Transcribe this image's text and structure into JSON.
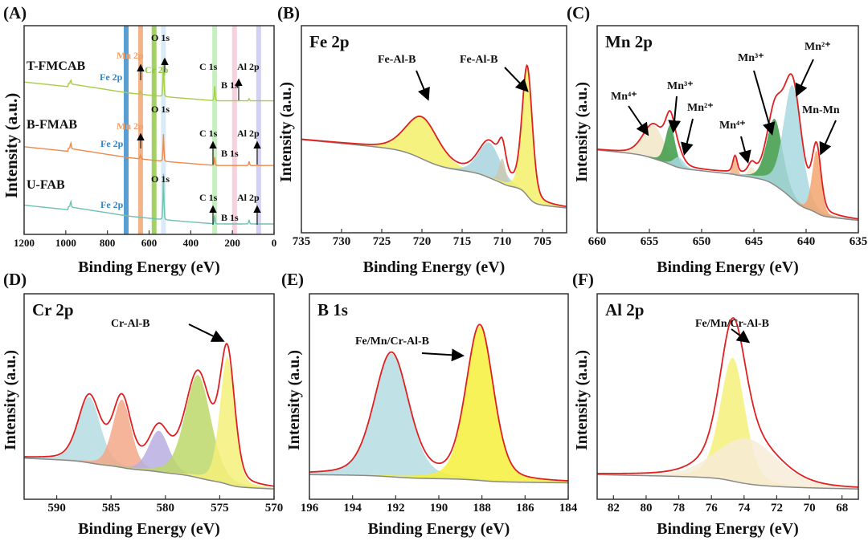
{
  "chart_data": [
    {
      "id": "A",
      "label": "(A)",
      "type": "line",
      "title": "",
      "xlabel": "Binding Energy (eV)",
      "ylabel": "Intensity (a.u.)",
      "xlim": [
        1200,
        0
      ],
      "ylim": [
        0,
        1
      ],
      "ticks": [
        1200,
        1000,
        800,
        600,
        400,
        200,
        0
      ],
      "bands": [
        {
          "name": "Fe 2p",
          "center": 710,
          "color": "#2f86c8"
        },
        {
          "name": "Mn 2p",
          "center": 641,
          "color": "#f0a06a"
        },
        {
          "name": "Cr 2p",
          "center": 576,
          "color": "#8cc63f"
        },
        {
          "name": "O 1s",
          "center": 531,
          "color": "#cfe6f5"
        },
        {
          "name": "C 1s",
          "center": 285,
          "color": "#b9ecb0"
        },
        {
          "name": "B 1s",
          "center": 190,
          "color": "#f6c6d6"
        },
        {
          "name": "Al 2p",
          "center": 74,
          "color": "#c7c4f0"
        }
      ],
      "series": [
        {
          "name": "T-FMCAB",
          "offset": 0.64,
          "color": "#a9cc44",
          "spikes": [
            [
              531,
              0.18
            ],
            [
              285,
              0.07
            ],
            [
              641,
              0.015
            ],
            [
              976,
              0.02
            ],
            [
              120,
              0.01
            ]
          ],
          "labels": {
            "fe": "Fe 2p",
            "mn": "Mn 2p",
            "cr": "Cr 2p",
            "o": "O 1s",
            "c": "C 1s",
            "al": "Al 2p",
            "b": "B 1s"
          }
        },
        {
          "name": "B-FMAB",
          "offset": 0.33,
          "color": "#ec8a4c",
          "spikes": [
            [
              531,
              0.13
            ],
            [
              285,
              0.04
            ],
            [
              641,
              0.02
            ],
            [
              976,
              0.03
            ],
            [
              120,
              0.02
            ]
          ],
          "labels": {
            "fe": "Fe 2p",
            "mn": "Mn 2p",
            "o": "O 1s",
            "c": "C 1s",
            "al": "Al 2p",
            "b": "B 1s"
          }
        },
        {
          "name": "U-FAB",
          "offset": 0.05,
          "color": "#6fc0b0",
          "spikes": [
            [
              531,
              0.22
            ],
            [
              285,
              0.04
            ],
            [
              976,
              0.03
            ],
            [
              120,
              0.02
            ]
          ],
          "labels": {
            "fe": "Fe 2p",
            "o": "O 1s",
            "c": "C 1s",
            "al": "Al 2p",
            "b": "B 1s"
          }
        }
      ]
    },
    {
      "id": "B",
      "label": "(B)",
      "type": "area",
      "title": "Fe 2p",
      "xlabel": "Binding Energy (eV)",
      "ylabel": "Intensity (a.u.)",
      "xlim": [
        735,
        702
      ],
      "ylim": [
        0,
        1
      ],
      "ticks": [
        735,
        730,
        725,
        720,
        715,
        710,
        705
      ],
      "baseline": [
        0.45,
        0.12
      ],
      "components": [
        {
          "center": 720.0,
          "height": 0.2,
          "width": 2.4,
          "color": "#f5f06a"
        },
        {
          "center": 711.6,
          "height": 0.17,
          "width": 1.6,
          "color": "#a8d4de"
        },
        {
          "center": 710.0,
          "height": 0.12,
          "width": 0.5,
          "color": "#c9c9b0"
        },
        {
          "center": 706.9,
          "height": 0.62,
          "width": 0.75,
          "color": "#f5f06a"
        }
      ],
      "annotations": [
        "Fe-Al-B",
        "Fe-Al-B"
      ]
    },
    {
      "id": "C",
      "label": "(C)",
      "type": "area",
      "title": "Mn 2p",
      "xlabel": "Binding Energy (eV)",
      "ylabel": "Intensity (a.u.)",
      "xlim": [
        660,
        635
      ],
      "ylim": [
        0,
        1
      ],
      "ticks": [
        660,
        655,
        650,
        645,
        640,
        635
      ],
      "baseline": [
        0.4,
        0.06
      ],
      "components": [
        {
          "center": 654.6,
          "height": 0.16,
          "width": 1.2,
          "color": "#f1e6c8"
        },
        {
          "center": 653.0,
          "height": 0.19,
          "width": 0.55,
          "color": "#3c9a46"
        },
        {
          "center": 652.2,
          "height": 0.05,
          "width": 0.6,
          "color": "#a8d8e0"
        },
        {
          "center": 646.8,
          "height": 0.08,
          "width": 0.25,
          "color": "#f5b080"
        },
        {
          "center": 645.2,
          "height": 0.05,
          "width": 0.4,
          "color": "#f1e6c8"
        },
        {
          "center": 643.0,
          "height": 0.32,
          "width": 0.9,
          "color": "#3c9a46"
        },
        {
          "center": 641.3,
          "height": 0.55,
          "width": 1.0,
          "color": "#a8d8e0"
        },
        {
          "center": 639.0,
          "height": 0.3,
          "width": 0.5,
          "color": "#f3a56e"
        }
      ],
      "annotations": [
        "Mn⁴⁺",
        "Mn³⁺",
        "Mn²⁺",
        "Mn⁴⁺",
        "Mn³⁺",
        "Mn²⁺",
        "Mn-Mn"
      ]
    },
    {
      "id": "D",
      "label": "(D)",
      "type": "area",
      "title": "Cr 2p",
      "xlabel": "Binding Energy (eV)",
      "ylabel": "Intensity (a.u.)",
      "xlim": [
        593,
        570
      ],
      "ylim": [
        0,
        1
      ],
      "ticks": [
        590,
        585,
        580,
        575,
        570
      ],
      "baseline": [
        0.2,
        0.05
      ],
      "components": [
        {
          "center": 587.0,
          "height": 0.32,
          "width": 1.2,
          "color": "#b5dce0"
        },
        {
          "center": 584.0,
          "height": 0.33,
          "width": 1.0,
          "color": "#f2a88a"
        },
        {
          "center": 580.6,
          "height": 0.2,
          "width": 1.1,
          "color": "#b8aee0"
        },
        {
          "center": 577.0,
          "height": 0.5,
          "width": 1.4,
          "color": "#bcd86a"
        },
        {
          "center": 574.3,
          "height": 0.62,
          "width": 0.8,
          "color": "#f5f07a"
        }
      ],
      "annotations": [
        "Cr-Al-B"
      ]
    },
    {
      "id": "E",
      "label": "(E)",
      "type": "area",
      "title": "B 1s",
      "xlabel": "Binding Energy (eV)",
      "ylabel": "Intensity (a.u.)",
      "xlim": [
        196,
        184
      ],
      "ylim": [
        0,
        1
      ],
      "ticks": [
        196,
        194,
        192,
        190,
        188,
        186,
        184
      ],
      "baseline": [
        0.12,
        0.08
      ],
      "components": [
        {
          "center": 192.2,
          "height": 0.6,
          "width": 0.95,
          "color": "#b5dce0"
        },
        {
          "center": 188.1,
          "height": 0.75,
          "width": 0.75,
          "color": "#f5f03a"
        }
      ],
      "annotations": [
        "Fe/Mn/Cr-Al-B"
      ]
    },
    {
      "id": "F",
      "label": "(F)",
      "type": "area",
      "title": "Al 2p",
      "xlabel": "Binding Energy (eV)",
      "ylabel": "Intensity (a.u.)",
      "xlim": [
        83,
        67
      ],
      "ylim": [
        0,
        1
      ],
      "ticks": [
        82,
        80,
        78,
        76,
        74,
        72,
        70,
        68
      ],
      "baseline": [
        0.12,
        0.05
      ],
      "components": [
        {
          "center": 74.7,
          "height": 0.6,
          "width": 0.9,
          "color": "#f5f07a"
        },
        {
          "center": 73.8,
          "height": 0.22,
          "width": 2.2,
          "color": "#f7ecd8"
        }
      ],
      "annotations": [
        "Fe/Mn/Cr-Al-B"
      ]
    }
  ],
  "colors": {
    "envelope": "#e02020",
    "baseline": "#8a8a8a"
  }
}
